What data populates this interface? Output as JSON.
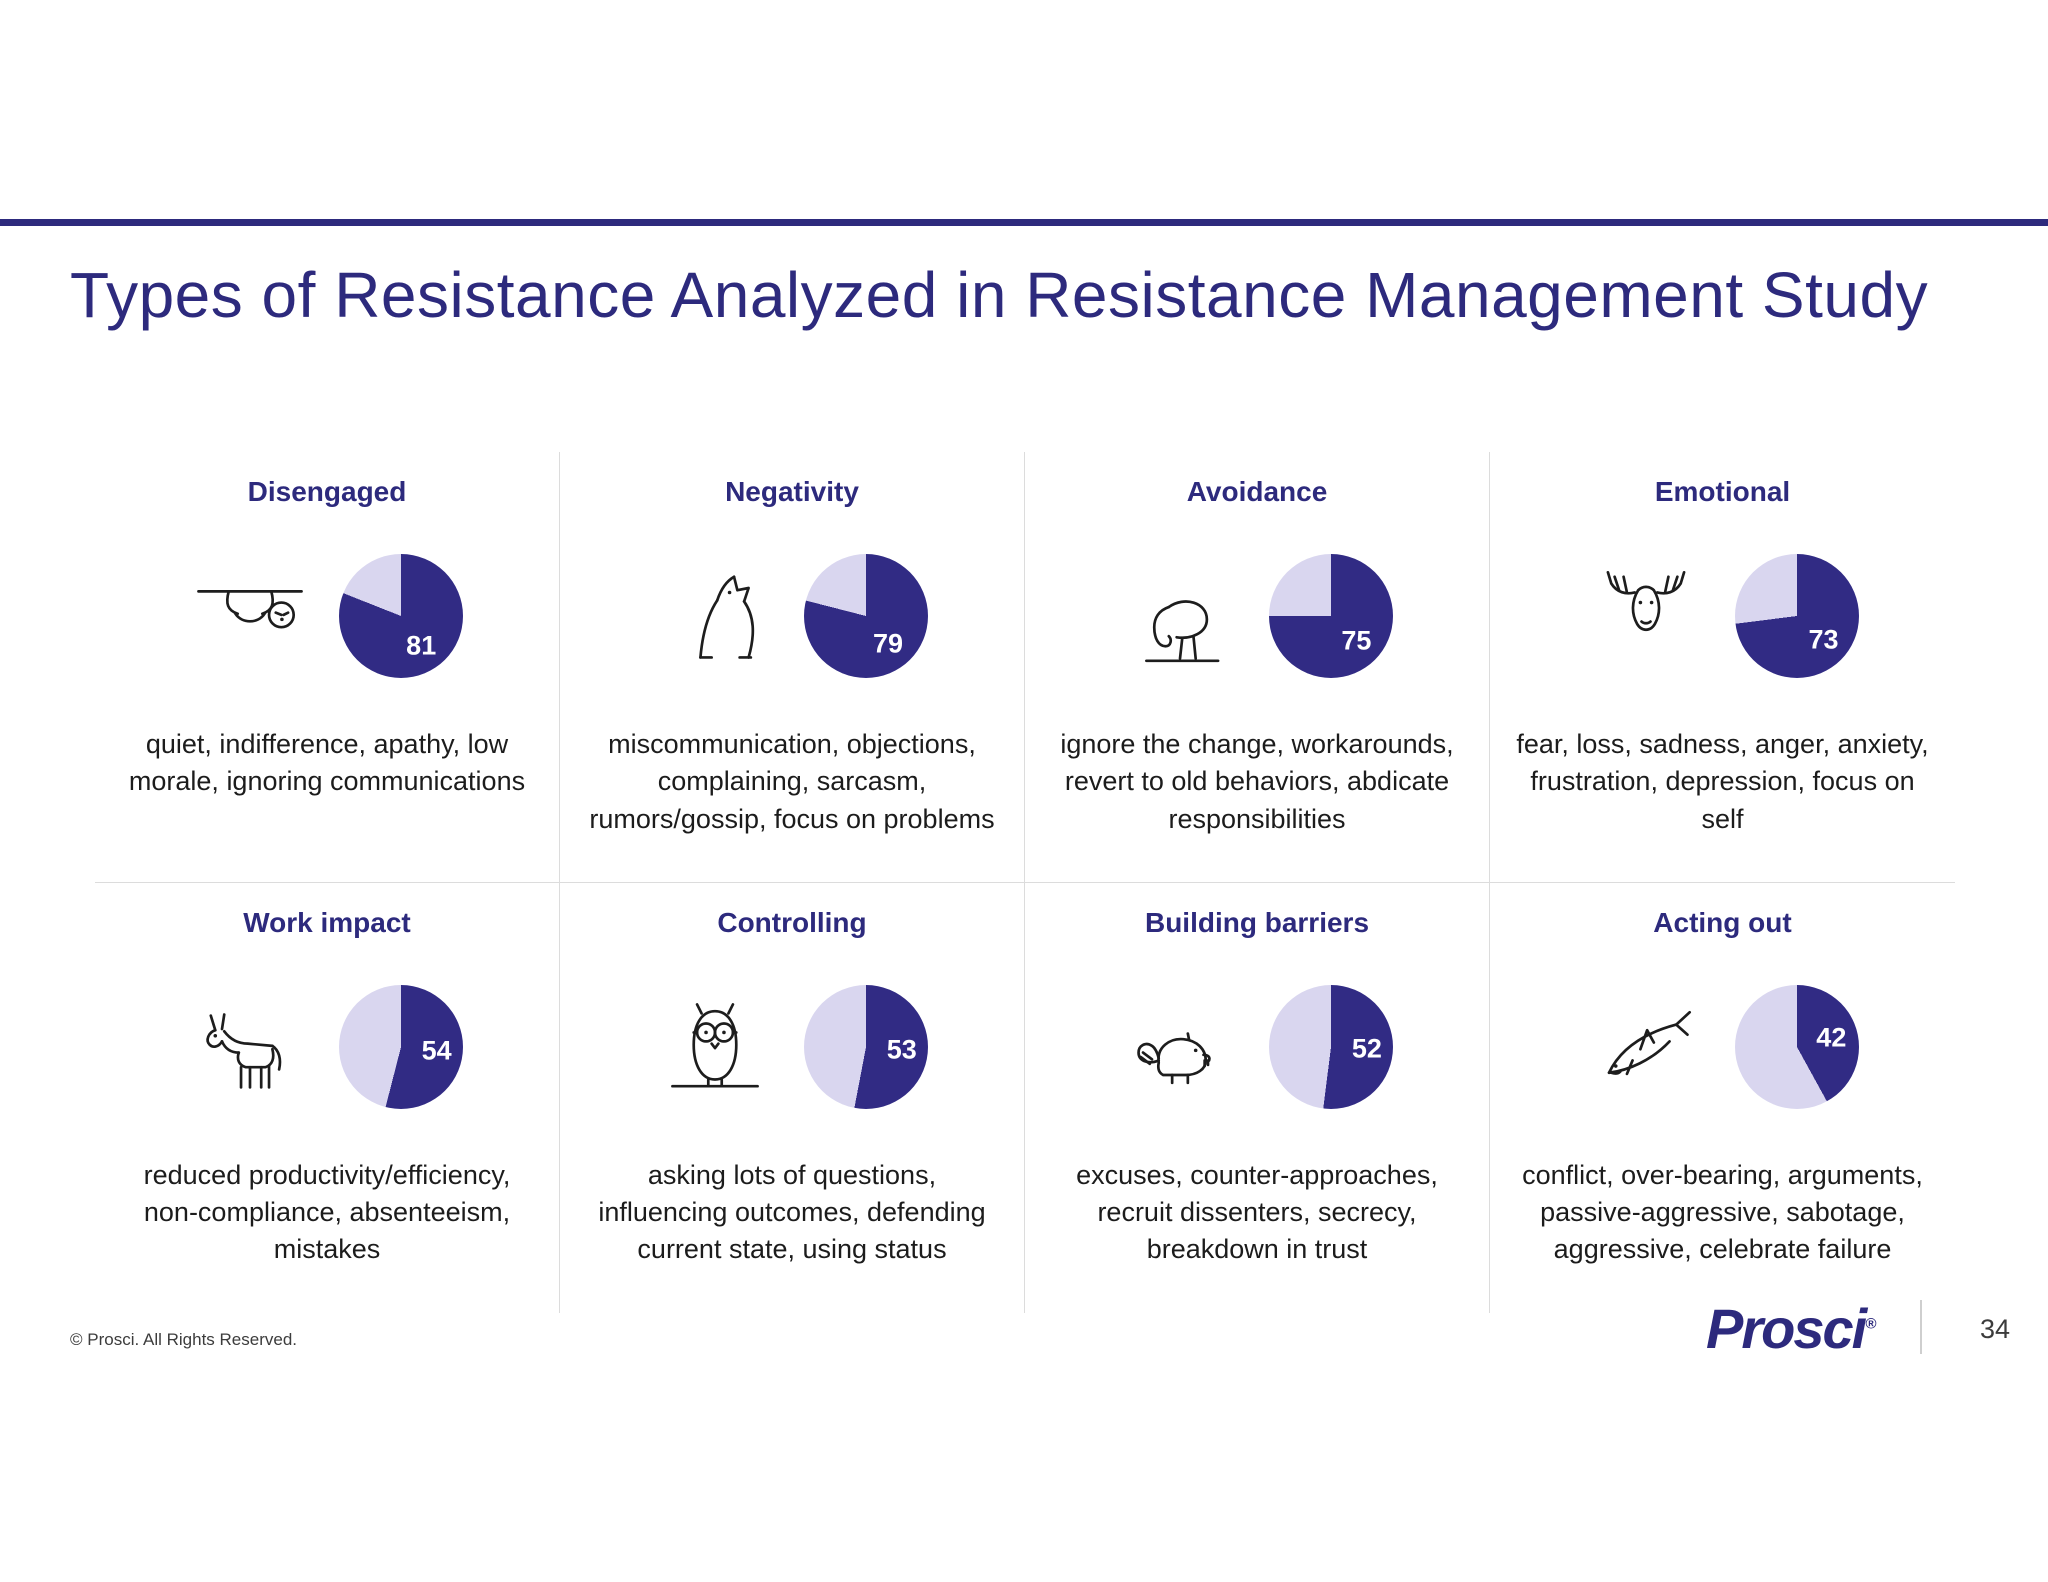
{
  "slide": {
    "title": "Types of Resistance Analyzed in Resistance Management Study",
    "footer": {
      "copyright": "© Prosci. All Rights Reserved.",
      "logo": "Prosci",
      "logo_mark": "®",
      "page": "34"
    }
  },
  "colors": {
    "accent": "#2d2a7d",
    "pie_dark": "#312b84",
    "pie_light": "#d9d6ef"
  },
  "chart_data": {
    "type": "pie",
    "title": "Types of Resistance Analyzed in Resistance Management Study",
    "unit": "%",
    "value_range": [
      0,
      100
    ],
    "items": [
      {
        "label": "Disengaged",
        "value": 81,
        "icon": "sloth-icon",
        "description": "quiet, indifference, apathy, low morale, ignoring communications"
      },
      {
        "label": "Negativity",
        "value": 79,
        "icon": "wolf-icon",
        "description": "miscommunication, objections, complaining, sarcasm, rumors/gossip, focus on problems"
      },
      {
        "label": "Avoidance",
        "value": 75,
        "icon": "ostrich-icon",
        "description": "ignore the change, workarounds, revert to old behaviors, abdicate responsibilities"
      },
      {
        "label": "Emotional",
        "value": 73,
        "icon": "moose-icon",
        "description": "fear, loss, sadness, anger, anxiety, frustration, depression, focus on self"
      },
      {
        "label": "Work impact",
        "value": 54,
        "icon": "donkey-icon",
        "description": "reduced productivity/efficiency, non-compliance, absenteeism, mistakes"
      },
      {
        "label": "Controlling",
        "value": 53,
        "icon": "owl-icon",
        "description": "asking lots of questions, influencing outcomes, defending current state, using status"
      },
      {
        "label": "Building barriers",
        "value": 52,
        "icon": "beaver-icon",
        "description": "excuses, counter-approaches, recruit dissenters, secrecy, breakdown in trust"
      },
      {
        "label": "Acting out",
        "value": 42,
        "icon": "shark-icon",
        "description": "conflict, over-bearing, arguments, passive-aggressive, sabotage, aggressive, celebrate failure"
      }
    ]
  }
}
